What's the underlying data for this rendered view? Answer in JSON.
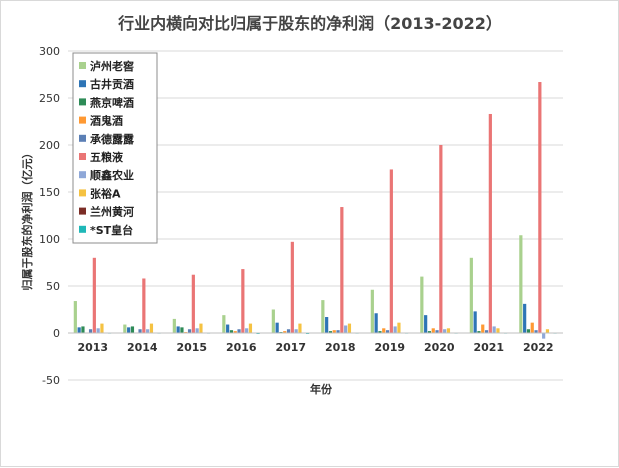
{
  "chart_data": {
    "type": "bar",
    "title": "行业内横向对比归属于股东的净利润（2013-2022）",
    "xlabel": "年份",
    "ylabel": "归属于股东的净利润（亿元）",
    "ylim": [
      -50,
      300
    ],
    "yticks": [
      "-50",
      "0",
      "50",
      "100",
      "150",
      "200",
      "250",
      "300"
    ],
    "grid": true,
    "legend_position": "top-left",
    "categories": [
      "2013",
      "2014",
      "2015",
      "2016",
      "2017",
      "2018",
      "2019",
      "2020",
      "2021",
      "2022"
    ],
    "series": [
      {
        "name": "泸州老窖",
        "color": "#a9d18e",
        "values": [
          34,
          9,
          15,
          19,
          25,
          35,
          46,
          60,
          80,
          104
        ]
      },
      {
        "name": "古井贡酒",
        "color": "#2e75b6",
        "values": [
          6,
          6,
          7,
          9,
          11,
          17,
          21,
          19,
          23,
          31
        ]
      },
      {
        "name": "燕京啤酒",
        "color": "#2e8b57",
        "values": [
          7,
          7,
          6,
          3,
          1,
          2,
          2,
          2,
          2,
          4
        ]
      },
      {
        "name": "酒鬼酒",
        "color": "#ff9933",
        "values": [
          0.1,
          0.2,
          1,
          2,
          2,
          3,
          5,
          5,
          9,
          11
        ]
      },
      {
        "name": "承德露露",
        "color": "#5b7fb5",
        "values": [
          4,
          4,
          4,
          4,
          4,
          3,
          3,
          3,
          3,
          3
        ]
      },
      {
        "name": "五粮液",
        "color": "#ea7575",
        "values": [
          80,
          58,
          62,
          68,
          97,
          134,
          174,
          200,
          233,
          267
        ]
      },
      {
        "name": "顺鑫农业",
        "color": "#8fa8d8",
        "values": [
          5,
          4,
          5,
          5,
          4,
          8,
          7,
          4,
          7,
          -6
        ]
      },
      {
        "name": "张裕A",
        "color": "#f5c242",
        "values": [
          10,
          10,
          10,
          10,
          10,
          10,
          11,
          5,
          5,
          4
        ]
      },
      {
        "name": "兰州黄河",
        "color": "#7b2d26",
        "values": [
          0.5,
          0.4,
          0.3,
          0.3,
          0.2,
          0.1,
          0.1,
          0.2,
          0.1,
          0.1
        ]
      },
      {
        "name": "*ST皇台",
        "color": "#1fb8b8",
        "values": [
          -0.3,
          -0.5,
          -0.5,
          -1,
          -1,
          -0.5,
          -0.3,
          -0.3,
          -0.2,
          -0.3
        ]
      }
    ]
  }
}
